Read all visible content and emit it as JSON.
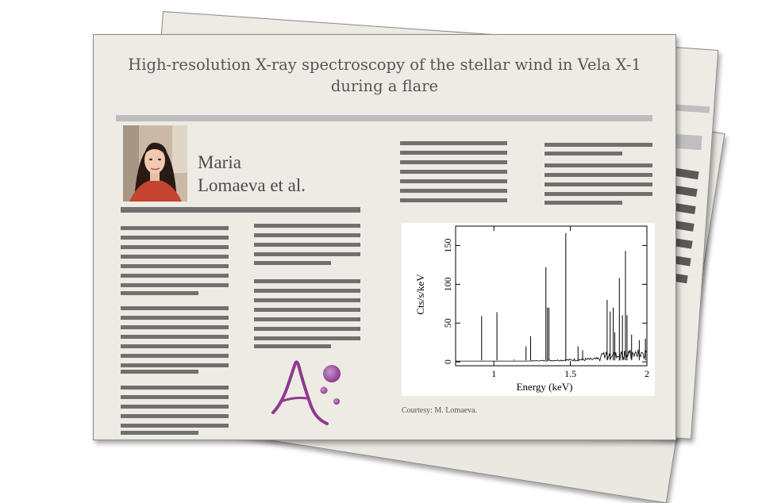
{
  "article": {
    "title_line1": "High-resolution X-ray spectroscopy of the stellar wind in Vela X-1",
    "title_line2": "during a flare",
    "author_line1": "Maria",
    "author_line2": "Lomaeva et al.",
    "caption": "Courtesy: M. Lomaeva."
  },
  "chart_data": {
    "type": "line",
    "xlabel": "Energy (keV)",
    "ylabel": "Cts/s/keV",
    "xlim": [
      0.75,
      2.0
    ],
    "ylim": [
      -5,
      175
    ],
    "x_ticks": [
      "1",
      "1.5",
      "2"
    ],
    "y_ticks": [
      "0",
      "50",
      "100",
      "150"
    ],
    "grid": false,
    "series": [
      {
        "x": [
          0.92,
          1.02,
          1.13,
          1.21,
          1.24,
          1.34,
          1.35,
          1.36,
          1.47,
          1.55,
          1.58,
          1.74,
          1.76,
          1.78,
          1.79,
          1.82,
          1.84,
          1.86,
          1.87,
          1.9,
          1.95,
          1.99
        ],
        "values": [
          59,
          64,
          3,
          20,
          33,
          122,
          70,
          70,
          166,
          20,
          15,
          80,
          65,
          70,
          38,
          108,
          60,
          143,
          60,
          35,
          28,
          30
        ]
      }
    ]
  },
  "colors": {
    "paper": "#eeebe5",
    "text_bar": "#707070",
    "logo_purple": "#8e3a8e"
  }
}
